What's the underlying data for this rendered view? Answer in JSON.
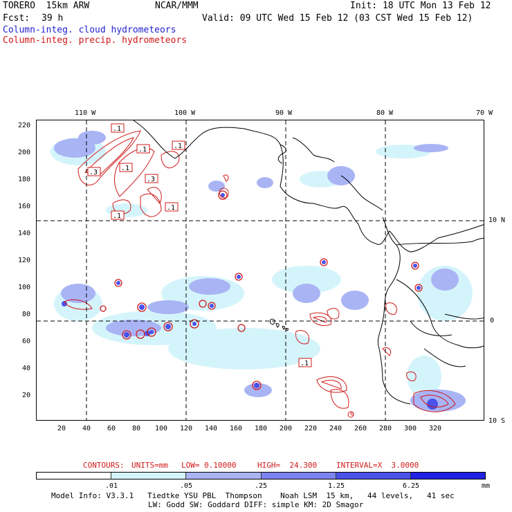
{
  "header": {
    "model": "TORERO  15km ARW",
    "org": "NCAR/MMM",
    "init": "Init: 18 UTC Mon 13 Feb 12",
    "fcst_label": "Fcst:",
    "fcst_value": "39 h",
    "valid": "Valid: 09 UTC Wed 15 Feb 12 (03 CST Wed 15 Feb 12)",
    "field1": "Column-integ. cloud hydrometeors",
    "field2": "Column-integ. precip. hydrometeors"
  },
  "map": {
    "lon_labels": [
      "110 W",
      "100 W",
      "90 W",
      "80 W",
      "70 W"
    ],
    "lat_labels": [
      "10 N",
      "0",
      "10 S"
    ],
    "y_ticks": [
      "220",
      "200",
      "180",
      "160",
      "140",
      "120",
      "100",
      "80",
      "60",
      "40",
      "20"
    ],
    "x_ticks": [
      "20",
      "40",
      "60",
      "80",
      "100",
      "120",
      "140",
      "160",
      "180",
      "200",
      "220",
      "240",
      "260",
      "280",
      "300",
      "320"
    ],
    "contour_labels": [
      ".1",
      ".1",
      ".1",
      ".1",
      ".3",
      ".3",
      ".1",
      ".1",
      ".1"
    ]
  },
  "contours_info": {
    "title": "CONTOURS:",
    "units": "UNITS=mm",
    "low": "LOW= 0.10000",
    "high": "HIGH=  24.300",
    "interval": "INTERVAL=X  3.0000"
  },
  "legend": {
    "labels": [
      ".01",
      ".05",
      ".25",
      "1.25",
      "6.25"
    ],
    "unit": "mm",
    "colors": [
      "#ffffff",
      "#d4f4fb",
      "#a9b4f5",
      "#7b84f0",
      "#4a52ea",
      "#2121e3"
    ]
  },
  "footer": {
    "line1": "Model Info: V3.3.1   Tiedtke YSU PBL  Thompson    Noah LSM  15 km,   44 levels,   41 sec",
    "line2": "LW: Godd SW: Goddard DIFF: simple KM: 2D Smagor"
  }
}
